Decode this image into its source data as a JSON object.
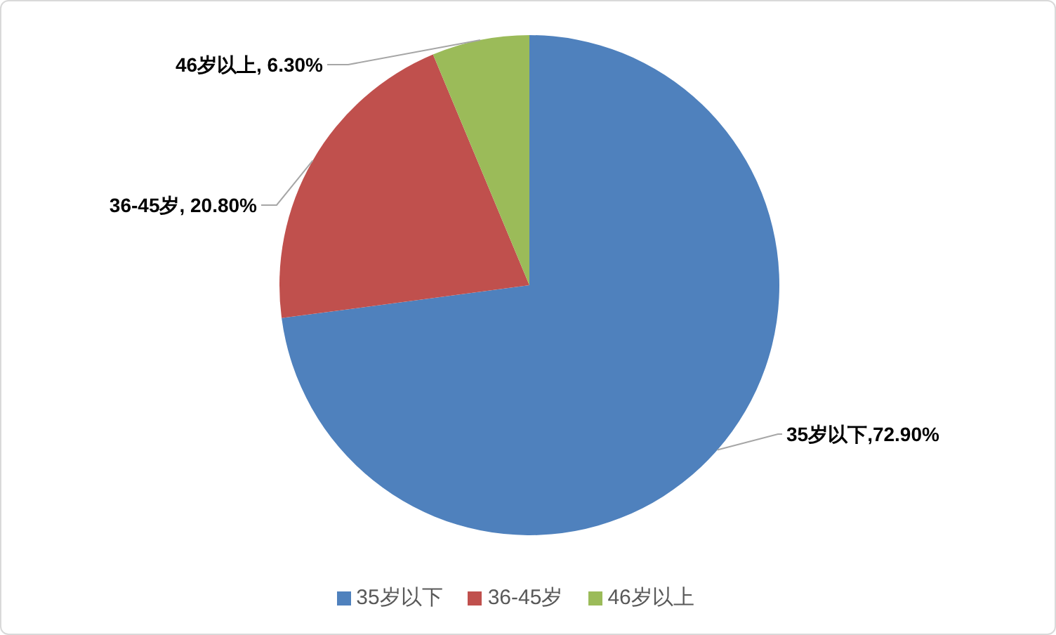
{
  "chart_data": {
    "type": "pie",
    "categories": [
      "35岁以下",
      "36-45岁",
      "46岁以上"
    ],
    "values": [
      72.9,
      20.8,
      6.3
    ],
    "colors": [
      "#4f81bd",
      "#c0504d",
      "#9bbb59"
    ],
    "value_labels": [
      "35岁以下,72.90%",
      "36-45岁, 20.80%",
      "46岁以上, 6.30%"
    ],
    "legend": "bottom"
  }
}
